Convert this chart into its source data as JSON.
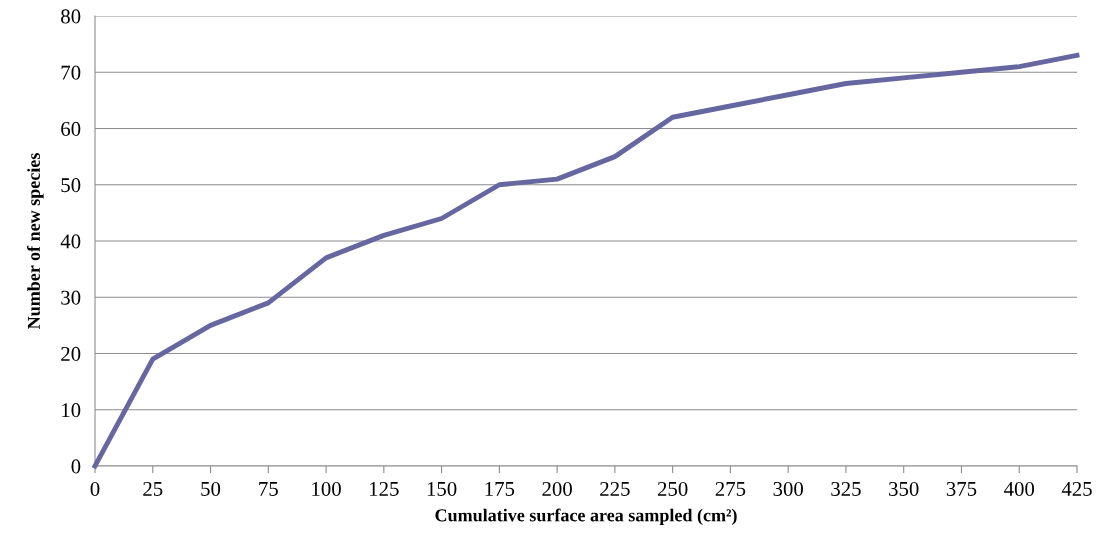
{
  "chart_data": {
    "type": "line",
    "xlabel": "Cumulative surface area sampled (cm²)",
    "ylabel": "Number of new species",
    "x": [
      0,
      25,
      50,
      75,
      100,
      125,
      150,
      175,
      200,
      225,
      250,
      275,
      300,
      325,
      350,
      375,
      400,
      425
    ],
    "series": [
      {
        "color": "#6666a0",
        "values": [
          0,
          19,
          25,
          29,
          37,
          41,
          44,
          50,
          51,
          55,
          62,
          64,
          66,
          68,
          69,
          70,
          71,
          73
        ]
      }
    ],
    "xlim": [
      0,
      425
    ],
    "xticks": [
      0,
      25,
      50,
      75,
      100,
      125,
      150,
      175,
      200,
      225,
      250,
      275,
      300,
      325,
      350,
      375,
      400,
      425
    ],
    "ylim": [
      0,
      80
    ],
    "yticks": [
      0,
      10,
      20,
      30,
      40,
      50,
      60,
      70,
      80
    ],
    "grid": "y",
    "marker": "none",
    "line_style": "solid"
  }
}
